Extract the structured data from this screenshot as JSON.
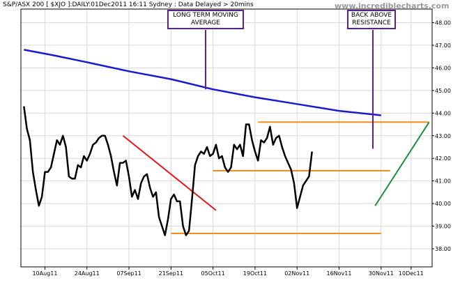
{
  "header": {
    "title": "S&P/ASX 200 [ $XJO ]:DAILY:01Dec2011 16:11 Sydney : Data Delayed > 20mins",
    "watermark": "www.incrediblecharts.com"
  },
  "annotations": {
    "moving_average_label": "LONG TERM MOVING AVERAGE",
    "resistance_label": "BACK ABOVE RESISTANCE"
  },
  "colors": {
    "price": "#000000",
    "moving_average": "#1a1acd",
    "downtrend": "#e8141a",
    "uptrend": "#1e8c3c",
    "support_resistance": "#f28c1c",
    "annotation_border": "#5b2189",
    "grid": "#d8d8d8"
  },
  "chart_data": {
    "type": "line",
    "title": "S&P/ASX 200 [ $XJO ]:DAILY:01Dec2011 16:11 Sydney : Data Delayed > 20mins",
    "xlabel": "",
    "ylabel": "",
    "ylim": [
      37.2,
      48.6
    ],
    "y_axis_position": "right",
    "grid": true,
    "y_ticks": [
      38.0,
      39.0,
      40.0,
      41.0,
      42.0,
      43.0,
      44.0,
      45.0,
      46.0,
      47.0,
      48.0
    ],
    "y_tick_labels": [
      "38.00",
      "39.00",
      "40.00",
      "41.00",
      "42.00",
      "43.00",
      "44.00",
      "45.00",
      "46.00",
      "47.00",
      "48.00"
    ],
    "x_ticks": [
      "2011-08-10",
      "2011-08-24",
      "2011-09-07",
      "2011-09-21",
      "2011-10-05",
      "2011-10-19",
      "2011-11-02",
      "2011-11-16",
      "2011-11-30",
      "2011-12-10"
    ],
    "x_tick_labels": [
      "10Aug11",
      "24Aug11",
      "07Sep11",
      "21Sep11",
      "05Oct11",
      "19Oct11",
      "02Nov11",
      "16Nov11",
      "30Nov11",
      "10Dec11"
    ],
    "xlim": [
      "2011-08-02",
      "2011-12-17"
    ],
    "series": [
      {
        "key": "price",
        "style": "line",
        "points": [
          [
            "2011-08-03",
            44.3
          ],
          [
            "2011-08-04",
            43.3
          ],
          [
            "2011-08-05",
            42.8
          ],
          [
            "2011-08-06",
            41.4
          ],
          [
            "2011-08-07",
            40.6
          ],
          [
            "2011-08-08",
            39.9
          ],
          [
            "2011-08-09",
            40.3
          ],
          [
            "2011-08-10",
            41.4
          ],
          [
            "2011-08-11",
            41.4
          ],
          [
            "2011-08-12",
            41.6
          ],
          [
            "2011-08-13",
            42.2
          ],
          [
            "2011-08-14",
            42.8
          ],
          [
            "2011-08-15",
            42.6
          ],
          [
            "2011-08-16",
            43.0
          ],
          [
            "2011-08-17",
            42.5
          ],
          [
            "2011-08-18",
            41.2
          ],
          [
            "2011-08-19",
            41.1
          ],
          [
            "2011-08-20",
            41.1
          ],
          [
            "2011-08-21",
            41.7
          ],
          [
            "2011-08-22",
            41.6
          ],
          [
            "2011-08-23",
            42.1
          ],
          [
            "2011-08-24",
            41.9
          ],
          [
            "2011-08-25",
            42.2
          ],
          [
            "2011-08-26",
            42.6
          ],
          [
            "2011-08-27",
            42.7
          ],
          [
            "2011-08-28",
            42.9
          ],
          [
            "2011-08-29",
            43.0
          ],
          [
            "2011-08-30",
            43.0
          ],
          [
            "2011-08-31",
            42.6
          ],
          [
            "2011-09-01",
            42.1
          ],
          [
            "2011-09-02",
            41.4
          ],
          [
            "2011-09-03",
            40.8
          ],
          [
            "2011-09-04",
            41.8
          ],
          [
            "2011-09-05",
            41.8
          ],
          [
            "2011-09-06",
            41.9
          ],
          [
            "2011-09-07",
            41.2
          ],
          [
            "2011-09-08",
            40.3
          ],
          [
            "2011-09-09",
            40.6
          ],
          [
            "2011-09-10",
            40.2
          ],
          [
            "2011-09-11",
            40.9
          ],
          [
            "2011-09-12",
            41.2
          ],
          [
            "2011-09-13",
            41.3
          ],
          [
            "2011-09-14",
            40.7
          ],
          [
            "2011-09-15",
            40.3
          ],
          [
            "2011-09-16",
            40.5
          ],
          [
            "2011-09-17",
            39.4
          ],
          [
            "2011-09-18",
            39.0
          ],
          [
            "2011-09-19",
            38.6
          ],
          [
            "2011-09-20",
            39.3
          ],
          [
            "2011-09-21",
            40.2
          ],
          [
            "2011-09-22",
            40.4
          ],
          [
            "2011-09-23",
            40.1
          ],
          [
            "2011-09-24",
            40.1
          ],
          [
            "2011-09-25",
            39.0
          ],
          [
            "2011-09-26",
            38.6
          ],
          [
            "2011-09-27",
            38.8
          ],
          [
            "2011-09-28",
            40.2
          ],
          [
            "2011-09-29",
            41.7
          ],
          [
            "2011-09-30",
            42.1
          ],
          [
            "2011-10-01",
            42.3
          ],
          [
            "2011-10-02",
            42.2
          ],
          [
            "2011-10-03",
            42.5
          ],
          [
            "2011-10-04",
            42.1
          ],
          [
            "2011-10-05",
            42.2
          ],
          [
            "2011-10-06",
            42.6
          ],
          [
            "2011-10-07",
            42.0
          ],
          [
            "2011-10-08",
            42.1
          ],
          [
            "2011-10-09",
            41.6
          ],
          [
            "2011-10-10",
            41.4
          ],
          [
            "2011-10-11",
            41.6
          ],
          [
            "2011-10-12",
            42.6
          ],
          [
            "2011-10-13",
            42.4
          ],
          [
            "2011-10-14",
            42.6
          ],
          [
            "2011-10-15",
            42.1
          ],
          [
            "2011-10-16",
            43.5
          ],
          [
            "2011-10-17",
            43.5
          ],
          [
            "2011-10-18",
            42.8
          ],
          [
            "2011-10-19",
            42.3
          ],
          [
            "2011-10-20",
            41.9
          ],
          [
            "2011-10-21",
            42.8
          ],
          [
            "2011-10-22",
            42.7
          ],
          [
            "2011-10-23",
            42.9
          ],
          [
            "2011-10-24",
            43.4
          ],
          [
            "2011-10-25",
            42.6
          ],
          [
            "2011-10-26",
            42.9
          ],
          [
            "2011-10-27",
            43.0
          ],
          [
            "2011-10-28",
            42.5
          ],
          [
            "2011-10-29",
            42.1
          ],
          [
            "2011-10-30",
            41.8
          ],
          [
            "2011-10-31",
            41.5
          ],
          [
            "2011-11-01",
            40.9
          ],
          [
            "2011-11-02",
            39.8
          ],
          [
            "2011-11-03",
            40.3
          ],
          [
            "2011-11-04",
            40.8
          ],
          [
            "2011-11-05",
            41.0
          ],
          [
            "2011-11-06",
            41.2
          ],
          [
            "2011-11-07",
            42.3
          ]
        ]
      },
      {
        "key": "moving_average",
        "style": "line",
        "points": [
          [
            "2011-08-03",
            46.8
          ],
          [
            "2011-08-13",
            46.55
          ],
          [
            "2011-08-24",
            46.25
          ],
          [
            "2011-09-07",
            45.85
          ],
          [
            "2011-09-21",
            45.5
          ],
          [
            "2011-10-05",
            45.05
          ],
          [
            "2011-10-19",
            44.7
          ],
          [
            "2011-11-02",
            44.4
          ],
          [
            "2011-11-16",
            44.1
          ],
          [
            "2011-11-30",
            43.9
          ]
        ]
      }
    ],
    "trendlines": [
      {
        "key": "downtrend",
        "from": [
          "2011-09-05",
          43.0
        ],
        "to": [
          "2011-10-06",
          39.7
        ]
      },
      {
        "key": "uptrend",
        "from": [
          "2011-11-28",
          39.9
        ],
        "to": [
          "2011-12-16",
          43.6
        ]
      }
    ],
    "levels": [
      {
        "key": "resistance_upper",
        "value": 43.6,
        "from": "2011-10-20",
        "to": "2011-12-16"
      },
      {
        "key": "resistance_lower",
        "value": 41.45,
        "from": "2011-10-05",
        "to": "2011-12-03"
      },
      {
        "key": "support",
        "value": 38.68,
        "from": "2011-09-21",
        "to": "2011-11-30"
      }
    ]
  }
}
